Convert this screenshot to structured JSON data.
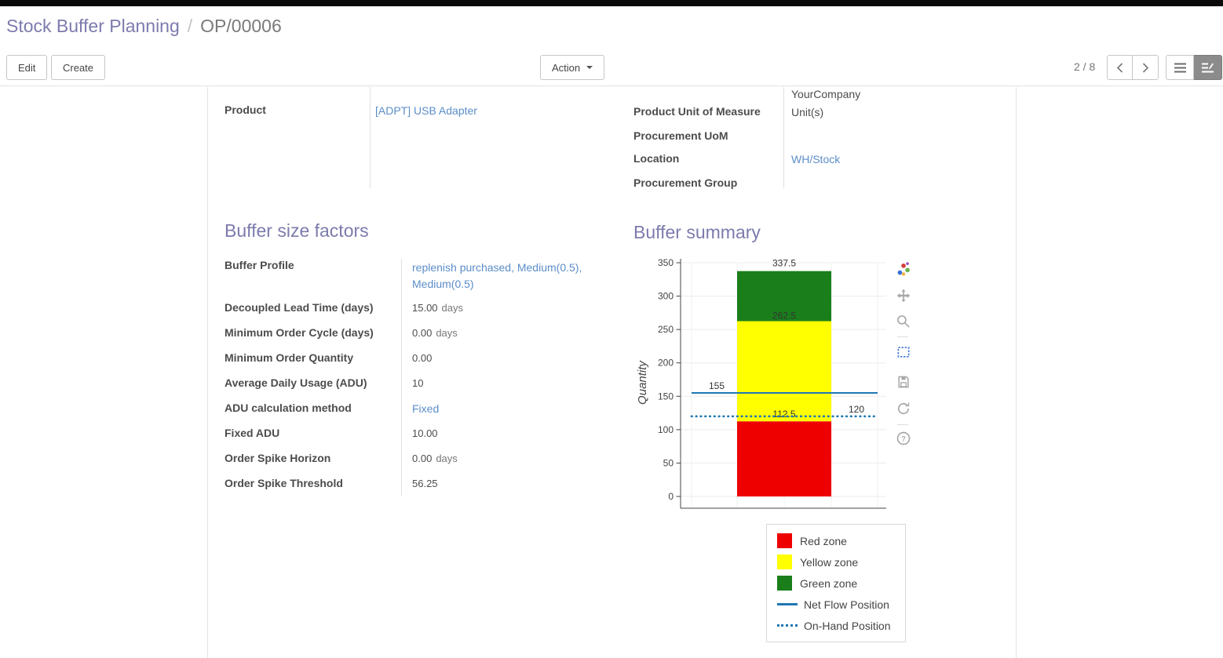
{
  "breadcrumb": {
    "parent": "Stock Buffer Planning",
    "separator": "/",
    "current": "OP/00006"
  },
  "control_panel": {
    "edit_label": "Edit",
    "create_label": "Create",
    "action_label": "Action",
    "pager_value": "2 / 8"
  },
  "form": {
    "clipped_value": "YourCompany",
    "left_fields": [
      {
        "label": "Product",
        "value": "[ADPT] USB Adapter",
        "link": true
      }
    ],
    "right_fields": [
      {
        "label": "Product Unit of Measure",
        "value": "Unit(s)",
        "link": false
      },
      {
        "label": "Procurement UoM",
        "value": "",
        "link": false
      },
      {
        "label": "Location",
        "value": "WH/Stock",
        "link": true
      },
      {
        "label": "Procurement Group",
        "value": "",
        "link": false
      }
    ],
    "sections": {
      "factors_heading": "Buffer size factors",
      "summary_heading": "Buffer summary"
    },
    "factor_fields": [
      {
        "label": "Buffer Profile",
        "value": "replenish purchased, Medium(0.5), Medium(0.5)",
        "link": true
      },
      {
        "label": "Decoupled Lead Time (days)",
        "value": "15.00",
        "suffix": "days"
      },
      {
        "label": "Minimum Order Cycle (days)",
        "value": "0.00",
        "suffix": "days"
      },
      {
        "label": "Minimum Order Quantity",
        "value": "0.00"
      },
      {
        "label": "Average Daily Usage (ADU)",
        "value": "10"
      },
      {
        "label": "ADU calculation method",
        "value": "Fixed",
        "link": true
      },
      {
        "label": "Fixed ADU",
        "value": "10.00"
      },
      {
        "label": "Order Spike Horizon",
        "value": "0.00",
        "suffix": "days"
      },
      {
        "label": "Order Spike Threshold",
        "value": "56.25"
      }
    ]
  },
  "chart_data": {
    "type": "bar",
    "title": "",
    "xlabel": "",
    "ylabel": "Quantity",
    "ylim": [
      0,
      350
    ],
    "ytick_step": 50,
    "grid": true,
    "zones": [
      {
        "name": "Red zone",
        "from": 0,
        "to": 112.5,
        "color": "#ee0000"
      },
      {
        "name": "Yellow zone",
        "from": 112.5,
        "to": 262.5,
        "color": "#ffff00"
      },
      {
        "name": "Green zone",
        "from": 262.5,
        "to": 337.5,
        "color": "#1a7f1a"
      }
    ],
    "lines": [
      {
        "name": "Net Flow Position",
        "value": 155,
        "style": "solid",
        "color": "#1f77b4",
        "label_side": "left"
      },
      {
        "name": "On-Hand Position",
        "value": 120,
        "style": "dotted",
        "color": "#1f77b4",
        "label_side": "right"
      }
    ],
    "legend": [
      "Red zone",
      "Yellow zone",
      "Green zone",
      "Net Flow Position",
      "On-Hand Position"
    ],
    "legend_position": "bottom-right"
  },
  "modebar_icons": [
    "plotly-logo",
    "pan-icon",
    "zoom-icon",
    "zoom-box-icon",
    "save-icon",
    "autoscale-icon",
    "help-icon"
  ],
  "view_switcher_icons": [
    "list-view-icon",
    "form-view-icon"
  ]
}
